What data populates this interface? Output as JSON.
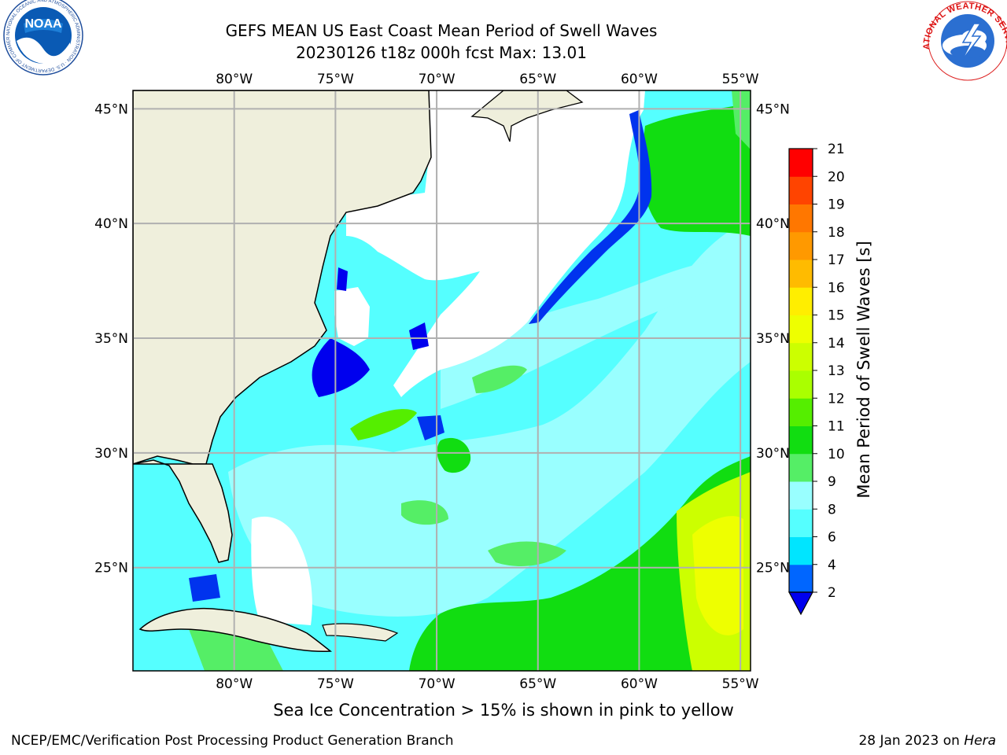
{
  "header": {
    "title_line1": "GEFS MEAN US East Coast Mean Period of Swell Waves",
    "title_line2": "20230126 t18z 000h fcst   Max: 13.01"
  },
  "logos": {
    "left": {
      "name": "noaa-logo",
      "text": "NOAA",
      "ring_text": "NATIONAL OCEANIC AND ATMOSPHERIC ADMINISTRATION · U.S. DEPARTMENT OF COMMERCE"
    },
    "right": {
      "name": "nws-logo",
      "ring_text": "NATIONAL WEATHER SERVICE"
    }
  },
  "map": {
    "lon_labels": [
      "80°W",
      "75°W",
      "70°W",
      "65°W",
      "60°W",
      "55°W"
    ],
    "lat_labels": [
      "45°N",
      "40°N",
      "35°N",
      "30°N",
      "25°N"
    ],
    "lon_range": [
      -85,
      -54.5
    ],
    "lat_range": [
      20.5,
      45.8
    ],
    "colors": {
      "land": "#efefdc",
      "no_data": "#ffffff",
      "grid": "#b0b0b0"
    }
  },
  "colorbar": {
    "label": "Mean Period of Swell Waves [s]",
    "ticks": [
      "2",
      "4",
      "6",
      "8",
      "9",
      "10",
      "11",
      "12",
      "13",
      "14",
      "15",
      "16",
      "17",
      "18",
      "19",
      "20",
      "21"
    ],
    "bins": [
      {
        "lo": 2,
        "hi": 4,
        "color": "#0066ff"
      },
      {
        "lo": 4,
        "hi": 6,
        "color": "#00e5ff"
      },
      {
        "lo": 6,
        "hi": 8,
        "color": "#55ffff"
      },
      {
        "lo": 8,
        "hi": 9,
        "color": "#99ffff"
      },
      {
        "lo": 9,
        "hi": 10,
        "color": "#55ee66"
      },
      {
        "lo": 10,
        "hi": 11,
        "color": "#11dd11"
      },
      {
        "lo": 11,
        "hi": 12,
        "color": "#55ee00"
      },
      {
        "lo": 12,
        "hi": 13,
        "color": "#aaff00"
      },
      {
        "lo": 13,
        "hi": 14,
        "color": "#ccff00"
      },
      {
        "lo": 14,
        "hi": 15,
        "color": "#eeff00"
      },
      {
        "lo": 15,
        "hi": 16,
        "color": "#ffee00"
      },
      {
        "lo": 16,
        "hi": 17,
        "color": "#ffbb00"
      },
      {
        "lo": 17,
        "hi": 18,
        "color": "#ff9900"
      },
      {
        "lo": 18,
        "hi": 19,
        "color": "#ff7700"
      },
      {
        "lo": 19,
        "hi": 20,
        "color": "#ff4400"
      },
      {
        "lo": 20,
        "hi": 21,
        "color": "#ff0000"
      }
    ],
    "under_color": "#0000ee"
  },
  "caption": "Sea Ice Concentration > 15% is shown in pink to yellow",
  "footer": {
    "left": "NCEP/EMC/Verification Post Processing Product Generation Branch",
    "right_prefix": "28 Jan 2023 on ",
    "right_host": "Hera"
  }
}
